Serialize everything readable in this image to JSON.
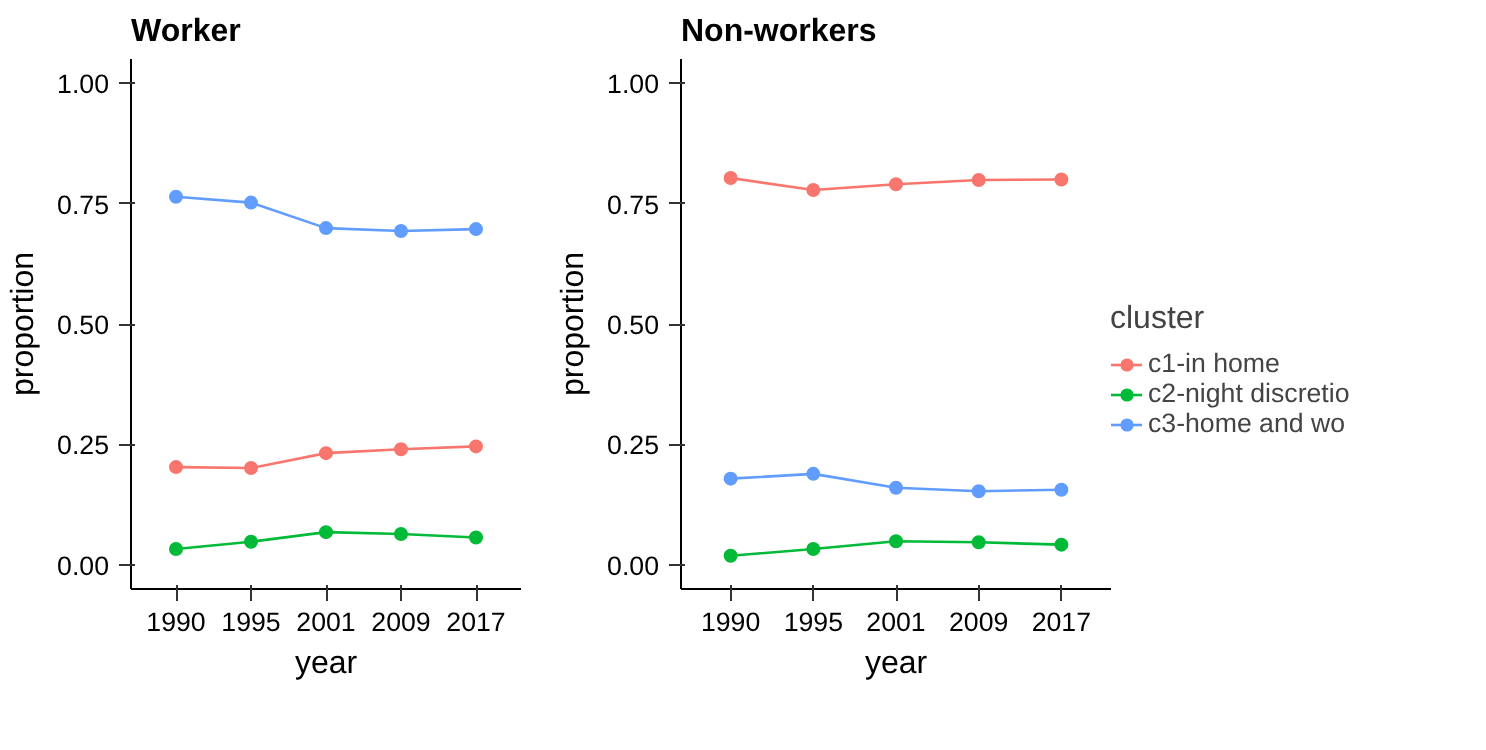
{
  "chart_data": [
    {
      "type": "line",
      "title": "Worker",
      "xlabel": "year",
      "ylabel": "proportion",
      "categories": [
        "1990",
        "1995",
        "2001",
        "2009",
        "2017"
      ],
      "ylim": [
        -0.05,
        1.05
      ],
      "yticks": [
        {
          "value": 0,
          "label": "0.00"
        },
        {
          "value": 0.25,
          "label": "0.25"
        },
        {
          "value": 0.5,
          "label": "0.50"
        },
        {
          "value": 0.75,
          "label": "0.75"
        },
        {
          "value": 1,
          "label": "1.00"
        }
      ],
      "grid": false,
      "marker": "circle",
      "legend": false,
      "series": [
        {
          "color": "#f8766d",
          "values": [
            0.203,
            0.201,
            0.232,
            0.24,
            0.246
          ]
        },
        {
          "color": "#00ba38",
          "values": [
            0.033,
            0.048,
            0.068,
            0.064,
            0.057
          ]
        },
        {
          "color": "#619cff",
          "values": [
            0.764,
            0.752,
            0.699,
            0.693,
            0.697
          ]
        }
      ]
    },
    {
      "type": "line",
      "title": "Non-workers",
      "xlabel": "year",
      "ylabel": "proportion",
      "categories": [
        "1990",
        "1995",
        "2001",
        "2009",
        "2017"
      ],
      "ylim": [
        -0.05,
        1.05
      ],
      "yticks": [
        {
          "value": 0,
          "label": "0.00"
        },
        {
          "value": 0.25,
          "label": "0.25"
        },
        {
          "value": 0.5,
          "label": "0.50"
        },
        {
          "value": 0.75,
          "label": "0.75"
        },
        {
          "value": 1,
          "label": "1.00"
        }
      ],
      "grid": false,
      "marker": "circle",
      "legend": "right",
      "legend_title": "cluster",
      "series": [
        {
          "name": "c1-in home",
          "color": "#f8766d",
          "values": [
            0.803,
            0.778,
            0.79,
            0.799,
            0.8
          ]
        },
        {
          "name": "c2-night discretio",
          "color": "#00ba38",
          "values": [
            0.019,
            0.033,
            0.049,
            0.047,
            0.042
          ]
        },
        {
          "name": "c3-home and wo",
          "color": "#619cff",
          "values": [
            0.179,
            0.189,
            0.16,
            0.153,
            0.156
          ]
        }
      ]
    }
  ]
}
